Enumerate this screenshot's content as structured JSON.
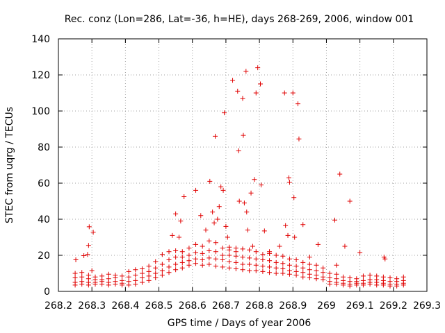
{
  "chart_data": {
    "type": "scatter",
    "title": "Rec. conz (Lon=286, Lat=-36, h=HE), days 268-269, 2006, window 001",
    "xlabel": "GPS time / Days of year 2006",
    "ylabel": "STEC from uqrg / TECUs",
    "xlim": [
      268.2,
      269.3
    ],
    "ylim": [
      0,
      140
    ],
    "x_ticks": [
      268.2,
      268.3,
      268.4,
      268.5,
      268.6,
      268.7,
      268.8,
      268.9,
      269.0,
      269.1,
      269.2,
      269.3
    ],
    "x_tick_labels": [
      "268.2",
      "268.3",
      "268.4",
      "268.5",
      "268.6",
      "268.7",
      "268.8",
      "268.9",
      "269",
      "269.1",
      "269.2",
      "269.3"
    ],
    "y_ticks": [
      0,
      20,
      40,
      60,
      80,
      100,
      120,
      140
    ],
    "y_tick_labels": [
      "0",
      "20",
      "40",
      "60",
      "80",
      "100",
      "120",
      "140"
    ],
    "grid": true,
    "marker": "+",
    "color": "#e00000",
    "series": [
      {
        "name": "outliers",
        "points": [
          [
            268.252,
            17.5
          ],
          [
            268.276,
            19.8
          ],
          [
            268.287,
            20.5
          ],
          [
            268.29,
            25.5
          ],
          [
            268.292,
            35.8
          ],
          [
            268.304,
            32.8
          ],
          [
            268.3,
            11.5
          ],
          [
            268.55,
            43
          ],
          [
            268.565,
            39
          ],
          [
            268.575,
            52.5
          ],
          [
            268.54,
            31
          ],
          [
            268.56,
            30
          ],
          [
            268.61,
            56
          ],
          [
            268.625,
            42
          ],
          [
            268.64,
            34
          ],
          [
            268.652,
            61
          ],
          [
            268.66,
            44
          ],
          [
            268.665,
            38
          ],
          [
            268.668,
            86
          ],
          [
            268.675,
            40
          ],
          [
            268.68,
            47
          ],
          [
            268.685,
            58
          ],
          [
            268.692,
            56
          ],
          [
            268.695,
            99
          ],
          [
            268.7,
            36
          ],
          [
            268.705,
            30
          ],
          [
            268.72,
            117
          ],
          [
            268.735,
            111
          ],
          [
            268.738,
            78
          ],
          [
            268.74,
            50
          ],
          [
            268.752,
            86.5
          ],
          [
            268.75,
            107
          ],
          [
            268.755,
            49
          ],
          [
            268.76,
            122
          ],
          [
            268.762,
            44
          ],
          [
            268.765,
            34
          ],
          [
            268.775,
            54.5
          ],
          [
            268.785,
            62
          ],
          [
            268.795,
            124
          ],
          [
            268.79,
            110
          ],
          [
            268.803,
            115
          ],
          [
            268.805,
            59
          ],
          [
            268.815,
            33.5
          ],
          [
            268.83,
            22
          ],
          [
            268.875,
            110
          ],
          [
            268.878,
            36.5
          ],
          [
            268.885,
            31
          ],
          [
            268.888,
            63
          ],
          [
            268.89,
            60.5
          ],
          [
            268.9,
            110
          ],
          [
            268.903,
            52
          ],
          [
            268.905,
            30
          ],
          [
            268.915,
            104
          ],
          [
            268.918,
            84.5
          ],
          [
            268.93,
            37
          ],
          [
            268.975,
            26
          ],
          [
            269.025,
            39.5
          ],
          [
            269.04,
            65
          ],
          [
            269.055,
            25
          ],
          [
            269.07,
            50
          ],
          [
            269.1,
            21.5
          ],
          [
            269.172,
            19
          ],
          [
            269.175,
            18
          ],
          [
            268.71,
            23
          ],
          [
            268.73,
            22
          ],
          [
            268.78,
            25
          ],
          [
            268.86,
            25
          ],
          [
            268.95,
            19
          ],
          [
            269.03,
            14.5
          ]
        ]
      },
      {
        "name": "band",
        "points": [
          [
            268.25,
            10.0
          ],
          [
            268.25,
            7.5
          ],
          [
            268.25,
            5.0
          ],
          [
            268.25,
            3.5
          ],
          [
            268.27,
            10.5
          ],
          [
            268.27,
            8.0
          ],
          [
            268.27,
            5.5
          ],
          [
            268.27,
            4.0
          ],
          [
            268.29,
            9.0
          ],
          [
            268.29,
            7.0
          ],
          [
            268.29,
            5.0
          ],
          [
            268.29,
            3.5
          ],
          [
            268.31,
            8.0
          ],
          [
            268.31,
            6.5
          ],
          [
            268.31,
            5.0
          ],
          [
            268.31,
            4.0
          ],
          [
            268.33,
            8.5
          ],
          [
            268.33,
            6.5
          ],
          [
            268.33,
            5.5
          ],
          [
            268.33,
            4.0
          ],
          [
            268.35,
            9.5
          ],
          [
            268.35,
            7.0
          ],
          [
            268.35,
            5.0
          ],
          [
            268.35,
            3.5
          ],
          [
            268.37,
            9.0
          ],
          [
            268.37,
            7.5
          ],
          [
            268.37,
            5.5
          ],
          [
            268.37,
            4.0
          ],
          [
            268.39,
            8.5
          ],
          [
            268.39,
            6.0
          ],
          [
            268.39,
            4.5
          ],
          [
            268.39,
            3.5
          ],
          [
            268.41,
            11.0
          ],
          [
            268.41,
            8.0
          ],
          [
            268.41,
            5.5
          ],
          [
            268.41,
            3.5
          ],
          [
            268.43,
            12.0
          ],
          [
            268.43,
            9.0
          ],
          [
            268.43,
            6.0
          ],
          [
            268.43,
            4.0
          ],
          [
            268.45,
            12.5
          ],
          [
            268.45,
            10.0
          ],
          [
            268.45,
            7.5
          ],
          [
            268.45,
            5.0
          ],
          [
            268.47,
            14.0
          ],
          [
            268.47,
            11.0
          ],
          [
            268.47,
            8.5
          ],
          [
            268.47,
            6.0
          ],
          [
            268.49,
            16.5
          ],
          [
            268.49,
            13.0
          ],
          [
            268.49,
            10.0
          ],
          [
            268.49,
            7.5
          ],
          [
            268.51,
            20.5
          ],
          [
            268.51,
            15.0
          ],
          [
            268.51,
            11.5
          ],
          [
            268.51,
            9.0
          ],
          [
            268.53,
            22.0
          ],
          [
            268.53,
            17.5
          ],
          [
            268.53,
            13.5
          ],
          [
            268.53,
            10.5
          ],
          [
            268.55,
            22.5
          ],
          [
            268.55,
            19.0
          ],
          [
            268.55,
            15.0
          ],
          [
            268.55,
            12.0
          ],
          [
            268.57,
            22.0
          ],
          [
            268.57,
            19.0
          ],
          [
            268.57,
            16.0
          ],
          [
            268.57,
            13.0
          ],
          [
            268.59,
            24.0
          ],
          [
            268.59,
            20.0
          ],
          [
            268.59,
            17.0
          ],
          [
            268.59,
            14.5
          ],
          [
            268.61,
            26.0
          ],
          [
            268.61,
            21.5
          ],
          [
            268.61,
            18.0
          ],
          [
            268.61,
            15.5
          ],
          [
            268.63,
            25.0
          ],
          [
            268.63,
            21.0
          ],
          [
            268.63,
            17.5
          ],
          [
            268.63,
            14.5
          ],
          [
            268.65,
            28.0
          ],
          [
            268.65,
            22.5
          ],
          [
            268.65,
            18.5
          ],
          [
            268.65,
            15.0
          ],
          [
            268.67,
            27.0
          ],
          [
            268.67,
            22.0
          ],
          [
            268.67,
            18.0
          ],
          [
            268.67,
            14.0
          ],
          [
            268.69,
            24.0
          ],
          [
            268.69,
            20.0
          ],
          [
            268.69,
            17.5
          ],
          [
            268.69,
            13.5
          ],
          [
            268.71,
            24.5
          ],
          [
            268.71,
            20.0
          ],
          [
            268.71,
            16.5
          ],
          [
            268.71,
            13.0
          ],
          [
            268.73,
            24.0
          ],
          [
            268.73,
            19.5
          ],
          [
            268.73,
            16.0
          ],
          [
            268.73,
            12.5
          ],
          [
            268.75,
            23.5
          ],
          [
            268.75,
            19.0
          ],
          [
            268.75,
            15.0
          ],
          [
            268.75,
            12.0
          ],
          [
            268.77,
            23.0
          ],
          [
            268.77,
            18.5
          ],
          [
            268.77,
            15.0
          ],
          [
            268.77,
            11.5
          ],
          [
            268.79,
            22.0
          ],
          [
            268.79,
            18.0
          ],
          [
            268.79,
            14.5
          ],
          [
            268.79,
            11.5
          ],
          [
            268.81,
            20.5
          ],
          [
            268.81,
            17.5
          ],
          [
            268.81,
            14.0
          ],
          [
            268.81,
            11.0
          ],
          [
            268.83,
            21.0
          ],
          [
            268.83,
            17.0
          ],
          [
            268.83,
            13.5
          ],
          [
            268.83,
            10.5
          ],
          [
            268.85,
            20.0
          ],
          [
            268.85,
            16.0
          ],
          [
            268.85,
            13.0
          ],
          [
            268.85,
            10.0
          ],
          [
            268.87,
            19.5
          ],
          [
            268.87,
            15.5
          ],
          [
            268.87,
            12.5
          ],
          [
            268.87,
            10.0
          ],
          [
            268.89,
            18.0
          ],
          [
            268.89,
            14.5
          ],
          [
            268.89,
            11.5
          ],
          [
            268.89,
            9.5
          ],
          [
            268.91,
            17.5
          ],
          [
            268.91,
            14.0
          ],
          [
            268.91,
            11.0
          ],
          [
            268.91,
            9.0
          ],
          [
            268.93,
            16.0
          ],
          [
            268.93,
            13.0
          ],
          [
            268.93,
            10.5
          ],
          [
            268.93,
            8.0
          ],
          [
            268.95,
            15.0
          ],
          [
            268.95,
            12.0
          ],
          [
            268.95,
            9.5
          ],
          [
            268.95,
            7.5
          ],
          [
            268.97,
            14.5
          ],
          [
            268.97,
            11.5
          ],
          [
            268.97,
            9.0
          ],
          [
            268.97,
            7.0
          ],
          [
            268.99,
            13.0
          ],
          [
            268.99,
            10.5
          ],
          [
            268.99,
            8.0
          ],
          [
            268.99,
            6.5
          ],
          [
            269.01,
            10.0
          ],
          [
            269.01,
            7.5
          ],
          [
            269.01,
            5.5
          ],
          [
            269.01,
            4.0
          ],
          [
            269.03,
            9.5
          ],
          [
            269.03,
            7.0
          ],
          [
            269.03,
            5.0
          ],
          [
            269.03,
            4.0
          ],
          [
            269.05,
            8.0
          ],
          [
            269.05,
            6.0
          ],
          [
            269.05,
            4.5
          ],
          [
            269.05,
            3.5
          ],
          [
            269.07,
            7.5
          ],
          [
            269.07,
            5.5
          ],
          [
            269.07,
            4.0
          ],
          [
            269.07,
            3.0
          ],
          [
            269.09,
            7.0
          ],
          [
            269.09,
            5.5
          ],
          [
            269.09,
            4.5
          ],
          [
            269.09,
            3.5
          ],
          [
            269.11,
            8.5
          ],
          [
            269.11,
            6.0
          ],
          [
            269.11,
            4.5
          ],
          [
            269.11,
            3.5
          ],
          [
            269.13,
            9.0
          ],
          [
            269.13,
            6.5
          ],
          [
            269.13,
            5.0
          ],
          [
            269.13,
            4.0
          ],
          [
            269.15,
            8.5
          ],
          [
            269.15,
            6.5
          ],
          [
            269.15,
            5.0
          ],
          [
            269.15,
            3.5
          ],
          [
            269.17,
            8.0
          ],
          [
            269.17,
            6.0
          ],
          [
            269.17,
            4.5
          ],
          [
            269.17,
            3.5
          ],
          [
            269.19,
            7.5
          ],
          [
            269.19,
            5.5
          ],
          [
            269.19,
            4.0
          ],
          [
            269.19,
            3.0
          ],
          [
            269.21,
            7.0
          ],
          [
            269.21,
            5.5
          ],
          [
            269.21,
            4.0
          ],
          [
            269.21,
            3.0
          ],
          [
            269.23,
            8.0
          ],
          [
            269.23,
            6.0
          ],
          [
            269.23,
            4.5
          ],
          [
            269.23,
            3.5
          ]
        ]
      }
    ]
  }
}
